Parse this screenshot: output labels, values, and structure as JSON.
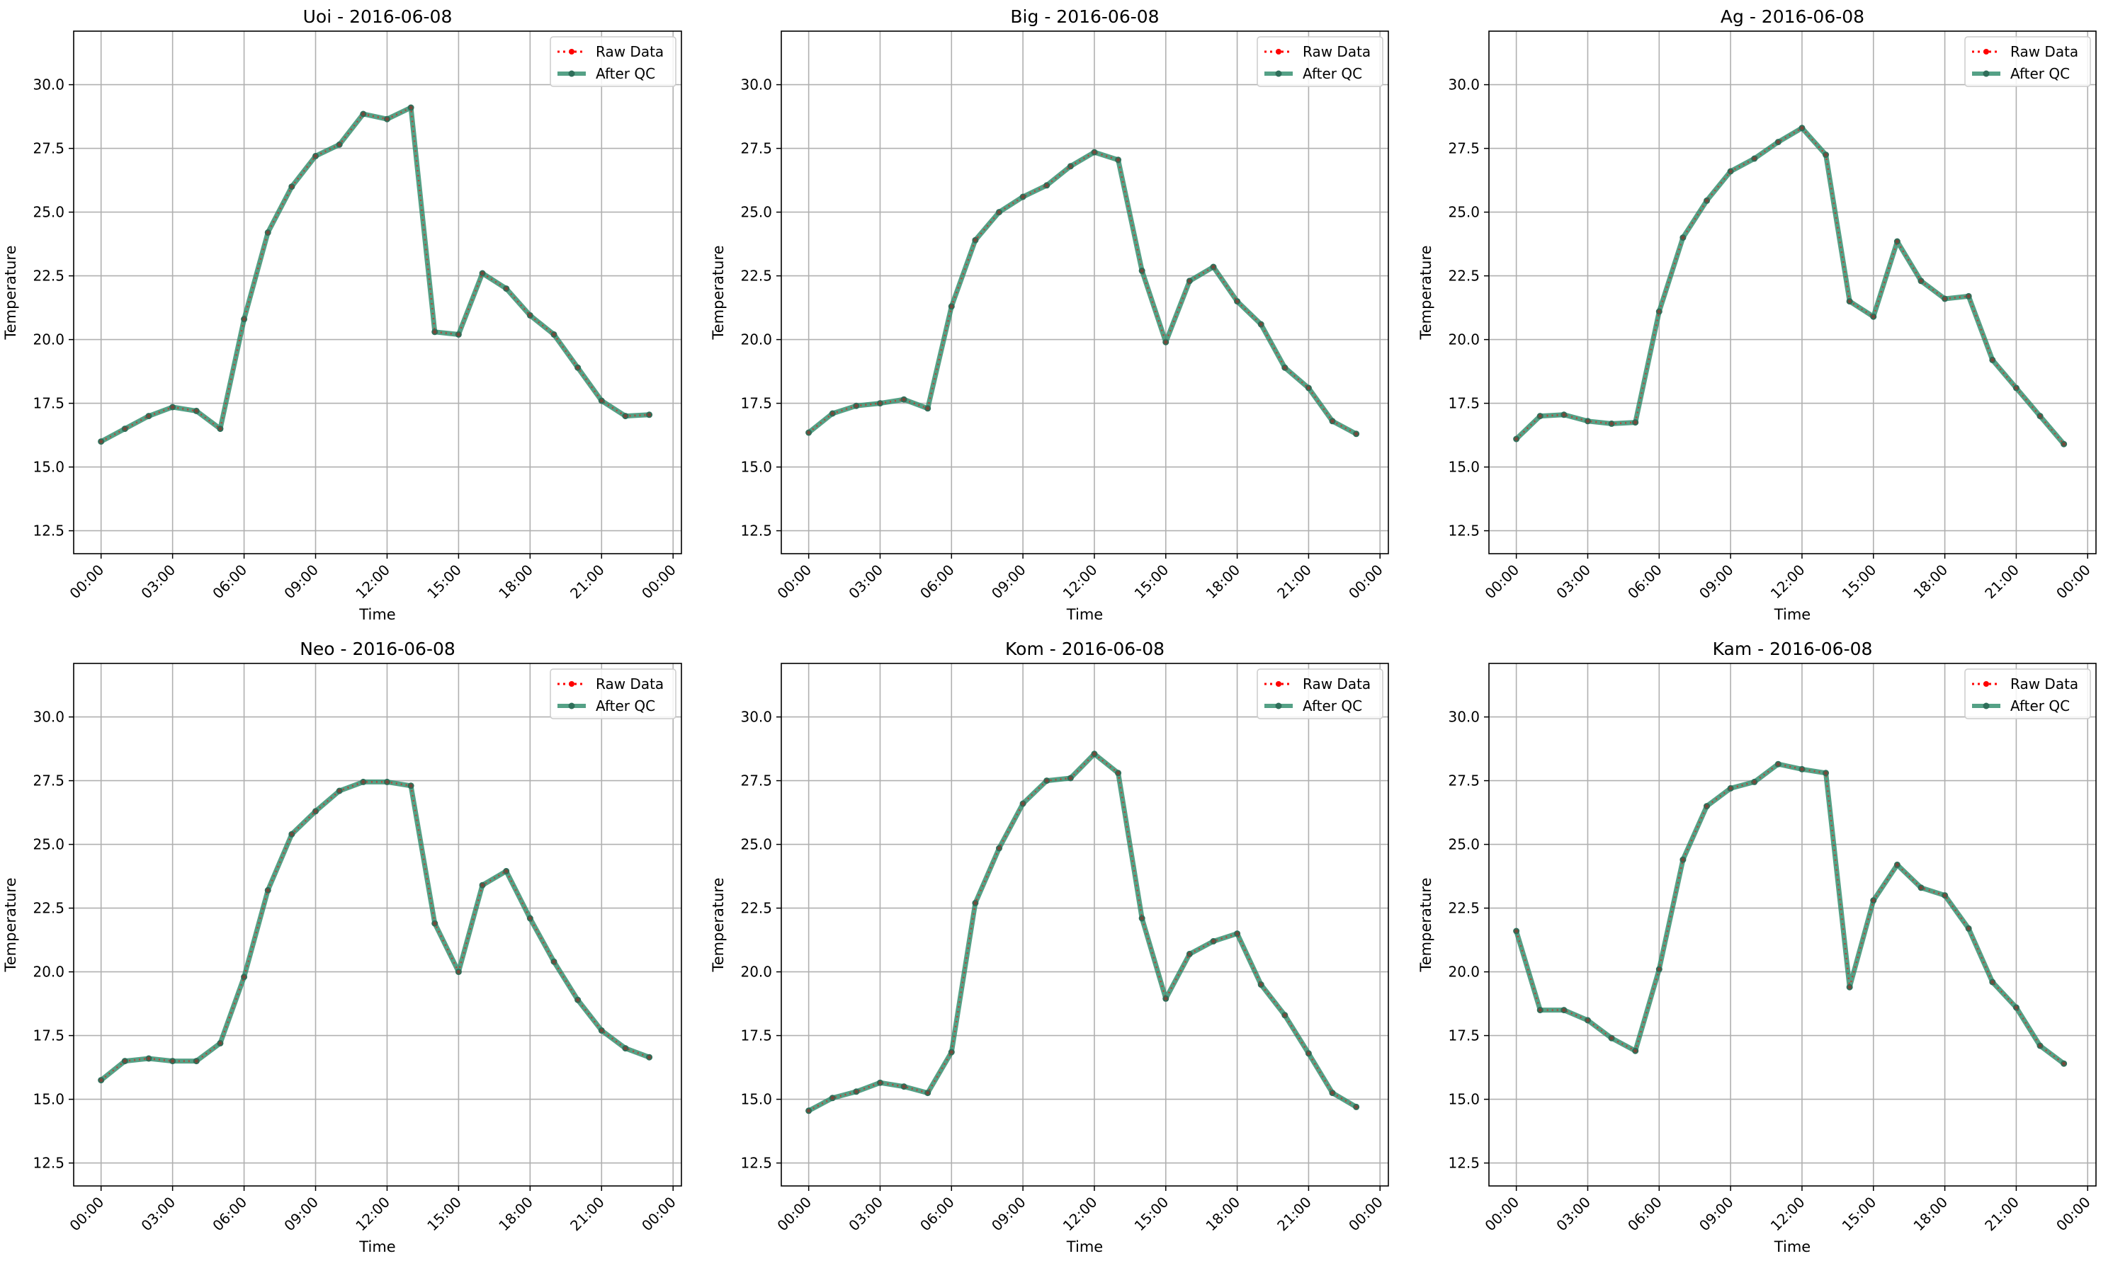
{
  "colors": {
    "raw": "#ff0000",
    "qc": "#2a8a68",
    "qc_marker": "#2f6f5a",
    "grid": "#b0b0b0",
    "axis": "#000000"
  },
  "legend": {
    "raw_label": "Raw Data",
    "qc_label": "After QC"
  },
  "chart_data": [
    {
      "type": "line",
      "title": "Uoi - 2016-06-08",
      "xlabel": "Time",
      "ylabel": "Temperature",
      "ylim": [
        11.6,
        32.1
      ],
      "yticks": [
        "12.5",
        "15.0",
        "17.5",
        "20.0",
        "22.5",
        "25.0",
        "27.5",
        "30.0"
      ],
      "xticks": [
        "00:00",
        "03:00",
        "06:00",
        "09:00",
        "12:00",
        "15:00",
        "18:00",
        "21:00",
        "00:00"
      ],
      "grid": true,
      "legend_position": "top-right",
      "series": [
        {
          "name": "Raw Data",
          "values": [
            16.0,
            16.5,
            17.0,
            17.35,
            17.2,
            16.5,
            20.8,
            24.2,
            26.0,
            27.2,
            27.65,
            28.85,
            28.65,
            29.1,
            20.3,
            20.2,
            22.6,
            22.0,
            20.95,
            20.2,
            18.9,
            17.6,
            17.0,
            17.05
          ]
        },
        {
          "name": "After QC",
          "values": [
            16.0,
            16.5,
            17.0,
            17.35,
            17.2,
            16.5,
            20.8,
            24.2,
            26.0,
            27.2,
            27.65,
            28.85,
            28.65,
            29.1,
            20.3,
            20.2,
            22.6,
            22.0,
            20.95,
            20.2,
            18.9,
            17.6,
            17.0,
            17.05
          ]
        }
      ]
    },
    {
      "type": "line",
      "title": "Big - 2016-06-08",
      "xlabel": "Time",
      "ylabel": "Temperature",
      "ylim": [
        11.6,
        32.1
      ],
      "yticks": [
        "12.5",
        "15.0",
        "17.5",
        "20.0",
        "22.5",
        "25.0",
        "27.5",
        "30.0"
      ],
      "xticks": [
        "00:00",
        "03:00",
        "06:00",
        "09:00",
        "12:00",
        "15:00",
        "18:00",
        "21:00",
        "00:00"
      ],
      "grid": true,
      "legend_position": "top-right",
      "series": [
        {
          "name": "Raw Data",
          "values": [
            16.35,
            17.1,
            17.4,
            17.5,
            17.65,
            17.3,
            21.3,
            23.9,
            25.0,
            25.6,
            26.05,
            26.8,
            27.35,
            27.05,
            22.7,
            19.9,
            22.3,
            22.85,
            21.5,
            20.6,
            18.9,
            18.1,
            16.8,
            16.3
          ]
        },
        {
          "name": "After QC",
          "values": [
            16.35,
            17.1,
            17.4,
            17.5,
            17.65,
            17.3,
            21.3,
            23.9,
            25.0,
            25.6,
            26.05,
            26.8,
            27.35,
            27.05,
            22.7,
            19.9,
            22.3,
            22.85,
            21.5,
            20.6,
            18.9,
            18.1,
            16.8,
            16.3
          ]
        }
      ]
    },
    {
      "type": "line",
      "title": "Ag - 2016-06-08",
      "xlabel": "Time",
      "ylabel": "Temperature",
      "ylim": [
        11.6,
        32.1
      ],
      "yticks": [
        "12.5",
        "15.0",
        "17.5",
        "20.0",
        "22.5",
        "25.0",
        "27.5",
        "30.0"
      ],
      "xticks": [
        "00:00",
        "03:00",
        "06:00",
        "09:00",
        "12:00",
        "15:00",
        "18:00",
        "21:00",
        "00:00"
      ],
      "grid": true,
      "legend_position": "top-right",
      "series": [
        {
          "name": "Raw Data",
          "values": [
            16.1,
            17.0,
            17.05,
            16.8,
            16.7,
            16.75,
            21.1,
            24.0,
            25.45,
            26.6,
            27.1,
            27.75,
            28.3,
            27.25,
            21.5,
            20.9,
            23.85,
            22.3,
            21.6,
            21.7,
            19.2,
            18.1,
            17.0,
            15.9
          ]
        },
        {
          "name": "After QC",
          "values": [
            16.1,
            17.0,
            17.05,
            16.8,
            16.7,
            16.75,
            21.1,
            24.0,
            25.45,
            26.6,
            27.1,
            27.75,
            28.3,
            27.25,
            21.5,
            20.9,
            23.85,
            22.3,
            21.6,
            21.7,
            19.2,
            18.1,
            17.0,
            15.9
          ]
        }
      ]
    },
    {
      "type": "line",
      "title": "Neo - 2016-06-08",
      "xlabel": "Time",
      "ylabel": "Temperature",
      "ylim": [
        11.6,
        32.1
      ],
      "yticks": [
        "12.5",
        "15.0",
        "17.5",
        "20.0",
        "22.5",
        "25.0",
        "27.5",
        "30.0"
      ],
      "xticks": [
        "00:00",
        "03:00",
        "06:00",
        "09:00",
        "12:00",
        "15:00",
        "18:00",
        "21:00",
        "00:00"
      ],
      "grid": true,
      "legend_position": "top-right",
      "series": [
        {
          "name": "Raw Data",
          "values": [
            15.75,
            16.5,
            16.6,
            16.5,
            16.5,
            17.2,
            19.8,
            23.2,
            25.4,
            26.3,
            27.1,
            27.45,
            27.45,
            27.3,
            21.9,
            20.0,
            23.4,
            23.95,
            22.1,
            20.4,
            18.9,
            17.7,
            17.0,
            16.65
          ]
        },
        {
          "name": "After QC",
          "values": [
            15.75,
            16.5,
            16.6,
            16.5,
            16.5,
            17.2,
            19.8,
            23.2,
            25.4,
            26.3,
            27.1,
            27.45,
            27.45,
            27.3,
            21.9,
            20.0,
            23.4,
            23.95,
            22.1,
            20.4,
            18.9,
            17.7,
            17.0,
            16.65
          ]
        }
      ]
    },
    {
      "type": "line",
      "title": "Kom - 2016-06-08",
      "xlabel": "Time",
      "ylabel": "Temperature",
      "ylim": [
        11.6,
        32.1
      ],
      "yticks": [
        "12.5",
        "15.0",
        "17.5",
        "20.0",
        "22.5",
        "25.0",
        "27.5",
        "30.0"
      ],
      "xticks": [
        "00:00",
        "03:00",
        "06:00",
        "09:00",
        "12:00",
        "15:00",
        "18:00",
        "21:00",
        "00:00"
      ],
      "grid": true,
      "legend_position": "top-right",
      "series": [
        {
          "name": "Raw Data",
          "values": [
            14.55,
            15.05,
            15.3,
            15.65,
            15.5,
            15.25,
            16.85,
            22.7,
            24.85,
            26.6,
            27.5,
            27.6,
            28.55,
            27.8,
            22.1,
            18.95,
            20.7,
            21.2,
            21.5,
            19.5,
            18.3,
            16.8,
            15.25,
            14.7
          ]
        },
        {
          "name": "After QC",
          "values": [
            14.55,
            15.05,
            15.3,
            15.65,
            15.5,
            15.25,
            16.85,
            22.7,
            24.85,
            26.6,
            27.5,
            27.6,
            28.55,
            27.8,
            22.1,
            18.95,
            20.7,
            21.2,
            21.5,
            19.5,
            18.3,
            16.8,
            15.25,
            14.7
          ]
        }
      ]
    },
    {
      "type": "line",
      "title": "Kam - 2016-06-08",
      "xlabel": "Time",
      "ylabel": "Temperature",
      "ylim": [
        11.6,
        32.1
      ],
      "yticks": [
        "12.5",
        "15.0",
        "17.5",
        "20.0",
        "22.5",
        "25.0",
        "27.5",
        "30.0"
      ],
      "xticks": [
        "00:00",
        "03:00",
        "06:00",
        "09:00",
        "12:00",
        "15:00",
        "18:00",
        "21:00",
        "00:00"
      ],
      "grid": true,
      "legend_position": "top-right",
      "series": [
        {
          "name": "Raw Data",
          "values": [
            21.6,
            18.5,
            18.5,
            18.1,
            17.4,
            16.9,
            20.1,
            24.4,
            26.5,
            27.2,
            27.45,
            28.15,
            27.95,
            27.8,
            19.4,
            22.8,
            24.2,
            23.3,
            23.0,
            21.7,
            19.6,
            18.6,
            17.1,
            16.4
          ]
        },
        {
          "name": "After QC",
          "values": [
            21.6,
            18.5,
            18.5,
            18.1,
            17.4,
            16.9,
            20.1,
            24.4,
            26.5,
            27.2,
            27.45,
            28.15,
            27.95,
            27.8,
            19.4,
            22.8,
            24.2,
            23.3,
            23.0,
            21.7,
            19.6,
            18.6,
            17.1,
            16.4
          ]
        }
      ]
    }
  ]
}
